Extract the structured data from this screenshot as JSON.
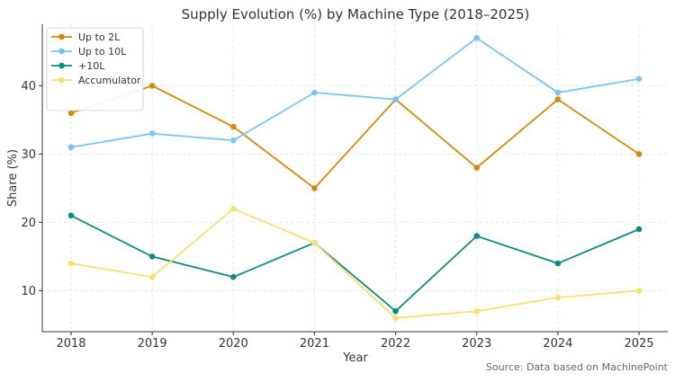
{
  "chart_data": {
    "type": "line",
    "title": "Supply Evolution (%) by Machine Type (2018–2025)",
    "xlabel": "Year",
    "ylabel": "Share (%)",
    "x": [
      "2018",
      "2019",
      "2020",
      "2021",
      "2022",
      "2023",
      "2024",
      "2025"
    ],
    "ylim": [
      4,
      49
    ],
    "yticks": [
      10,
      20,
      30,
      40
    ],
    "grid": true,
    "legend_position": "top-left",
    "series": [
      {
        "name": "Up to 2L",
        "color": "#d4890a",
        "values": [
          36,
          40,
          34,
          25,
          38,
          28,
          38,
          30
        ]
      },
      {
        "name": "Up to 10L",
        "color": "#7cc4f0",
        "values": [
          31,
          33,
          32,
          39,
          38,
          47,
          39,
          41
        ]
      },
      {
        "name": "+10L",
        "color": "#0f8a80",
        "values": [
          21,
          15,
          12,
          17,
          7,
          18,
          14,
          19
        ]
      },
      {
        "name": "Accumulator",
        "color": "#f8df70",
        "values": [
          14,
          12,
          22,
          17,
          6,
          7,
          9,
          10
        ]
      }
    ]
  },
  "source_text": "Source: Data based on MachinePoint"
}
